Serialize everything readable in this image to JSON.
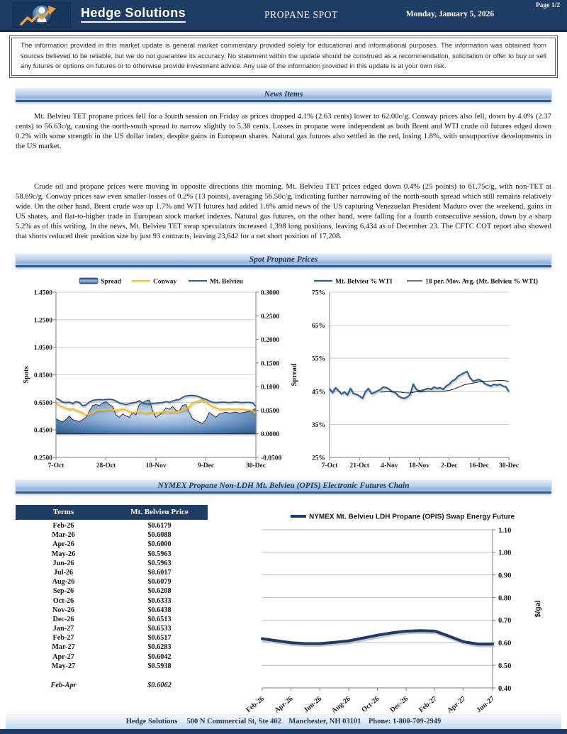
{
  "header": {
    "company": "Hedge Solutions",
    "report_title": "PROPANE SPOT",
    "date": "Monday, January 5, 2026",
    "page": "Page 1/2"
  },
  "disclaimer": "The information provided in this market update is general market commentary provided solely for educational and informational purposes.  The information was obtained from sources believed to be reliable, but we do not guarantee its accuracy.  No statement within the update should be construed as a recommendation, solicitation or offer to buy or sell any futures or options on futures or to otherwise provide investment advice.  Any use of the information provided in this update is at your own risk.",
  "sections": {
    "news": "News Items",
    "spot": "Spot Propane Prices",
    "futures": "NYMEX Propane Non-LDH Mt. Belvieu  (OPIS) Electronic Futures Chain"
  },
  "news": {
    "paragraph1": "Mt. Belvieu TET propane prices fell for a fourth session on Friday as prices dropped 4.1% (2.63 cents) lower to 62.00c/g. Conway prices also fell, down by 4.0% (2.37 cents) to 56.63c/g, causing the north-south spread to narrow slightly to 5.38 cents. Losses in propane were independent as both Brent and WTI crude oil futures edged down 0.2% with some strength in the US dollar index, despite gains in European shares. Natural gas futures also settled in the red, losing 1.8%, with unsupportive developments in the US market.",
    "paragraph2": "Crude oil and propane prices were moving in opposite directions this morning. Mt. Belvieu TET prices edged down 0.4% (25 points) to 61.75c/g, with non-TET at 58.69c/g. Conway prices saw even smaller losses of 0.2% (13 points), averaging 56.50c/g, indicating further narrowing of the north-south spread which still remains relatively wide. On the other hand, Brent crude was up 1.7% and WTI futures had added 1.6% amid news of the US capturing Venezuelan President Maduro over the weekend, gains in US shares, and flat-to-higher trade in European stock market indexes. Natural gas futures, on the other hand, were falling for a fourth consecutive session, down by a sharp 5.2% as of this writing. In the news, Mt. Belvieu TET swap speculators increased 1,398 long positions, leaving 6,434 as of December 23. The CFTC COT report also showed that shorts reduced their position size by just 93 contracts, leaving 23,642 for a net short position of 17,208."
  },
  "futures_table": {
    "headers": [
      "Terms",
      "Mt. Belvieu Price"
    ],
    "rows": [
      [
        "Feb-26",
        "$0.6179"
      ],
      [
        "Mar-26",
        "$0.6088"
      ],
      [
        "Apr-26",
        "$0.6000"
      ],
      [
        "May-26",
        "$0.5963"
      ],
      [
        "Jun-26",
        "$0.5963"
      ],
      [
        "Jul-26",
        "$0.6017"
      ],
      [
        "Aug-26",
        "$0.6079"
      ],
      [
        "Sep-26",
        "$0.6208"
      ],
      [
        "Oct-26",
        "$0.6333"
      ],
      [
        "Nov-26",
        "$0.6438"
      ],
      [
        "Dec-26",
        "$0.6513"
      ],
      [
        "Jan-27",
        "$0.6533"
      ],
      [
        "Feb-27",
        "$0.6517"
      ],
      [
        "Mar-27",
        "$0.6283"
      ],
      [
        "Apr-27",
        "$0.6042"
      ],
      [
        "May-27",
        "$0.5938"
      ]
    ],
    "summary_row": [
      "Feb-Apr",
      "$0.6062"
    ]
  },
  "footer": {
    "text": "Hedge Solutions     500 N Commercial St, Ste 402    Manchester, NH 03101    Phone: 1-800-709-2949"
  },
  "colors": {
    "navy": "#1f3c64",
    "bar_text": "#17375d",
    "conway_gold": "#ffc000",
    "belvieu_blue": "#2d5c8e",
    "grid_gray": "#bfbfbf",
    "axis_gray": "#7f7f7f"
  },
  "chart_data": [
    {
      "type": "area",
      "title": "Spot chart: Spread area with Conway and Mt. Belvieu lines",
      "legend": [
        "Spread",
        "Conway",
        "Mt. Belvieu"
      ],
      "ylabel_left": "Spots",
      "ylabel_right": "Spread",
      "ylim_left": [
        0.25,
        1.45
      ],
      "yticks_left": [
        "0.2500",
        "0.4500",
        "0.6500",
        "0.8500",
        "1.0500",
        "1.2500",
        "1.4500"
      ],
      "ylim_right": [
        -0.05,
        0.3
      ],
      "yticks_right": [
        "-0.0500",
        "0.0000",
        "0.0500",
        "0.1000",
        "0.1500",
        "0.2000",
        "0.2500",
        "0.3000"
      ],
      "xticks": [
        "7-Oct",
        "28-Oct",
        "18-Nov",
        "9-Dec",
        "30-Dec"
      ],
      "xtick_indices": [
        0,
        15,
        30,
        45,
        60
      ],
      "grid": true,
      "legend_position": "top",
      "series": [
        {
          "name": "Spread",
          "axis": "right",
          "values": [
            0.032,
            0.028,
            0.025,
            0.03,
            0.038,
            0.03,
            0.028,
            0.026,
            0.03,
            0.035,
            0.048,
            0.06,
            0.062,
            0.06,
            0.065,
            0.068,
            0.062,
            0.058,
            0.04,
            0.035,
            0.042,
            0.038,
            0.035,
            0.045,
            0.04,
            0.062,
            0.066,
            0.07,
            0.072,
            0.048,
            0.035,
            0.04,
            0.045,
            0.055,
            0.052,
            0.058,
            0.05,
            0.048,
            0.06,
            0.062,
            0.045,
            0.032,
            0.028,
            0.025,
            0.022,
            0.03,
            0.045,
            0.04,
            0.035,
            0.042,
            0.044,
            0.046,
            0.044,
            0.045,
            0.046,
            0.044,
            0.045,
            0.046,
            0.048,
            0.05,
            0.054
          ]
        },
        {
          "name": "Conway",
          "axis": "left",
          "values": [
            0.645,
            0.628,
            0.618,
            0.608,
            0.6,
            0.605,
            0.592,
            0.584,
            0.572,
            0.56,
            0.565,
            0.576,
            0.59,
            0.596,
            0.592,
            0.596,
            0.599,
            0.596,
            0.591,
            0.596,
            0.601,
            0.599,
            0.582,
            0.577,
            0.58,
            0.582,
            0.576,
            0.573,
            0.579,
            0.576,
            0.573,
            0.576,
            0.579,
            0.581,
            0.579,
            0.581,
            0.583,
            0.586,
            0.591,
            0.601,
            0.621,
            0.646,
            0.656,
            0.661,
            0.669,
            0.651,
            0.636,
            0.621,
            0.611,
            0.601,
            0.599,
            0.601,
            0.603,
            0.601,
            0.599,
            0.601,
            0.599,
            0.596,
            0.594,
            0.591,
            0.566
          ]
        },
        {
          "name": "Mt. Belvieu",
          "axis": "left",
          "values": [
            0.68,
            0.668,
            0.652,
            0.648,
            0.652,
            0.64,
            0.656,
            0.648,
            0.625,
            0.632,
            0.652,
            0.664,
            0.668,
            0.67,
            0.668,
            0.67,
            0.672,
            0.67,
            0.66,
            0.646,
            0.64,
            0.633,
            0.64,
            0.646,
            0.65,
            0.662,
            0.646,
            0.64,
            0.638,
            0.641,
            0.643,
            0.646,
            0.649,
            0.655,
            0.65,
            0.66,
            0.666,
            0.671,
            0.686,
            0.696,
            0.7,
            0.7,
            0.698,
            0.69,
            0.68,
            0.672,
            0.661,
            0.651,
            0.648,
            0.65,
            0.652,
            0.65,
            0.648,
            0.65,
            0.652,
            0.65,
            0.648,
            0.65,
            0.65,
            0.647,
            0.62
          ]
        }
      ]
    },
    {
      "type": "line",
      "title": "Mt. Belvieu % WTI with 18 period moving average",
      "legend": [
        "Mt. Belvieu % WTI",
        "18 per. Mov. Avg. (Mt. Belvieu % WTI)"
      ],
      "ylim": [
        25,
        75
      ],
      "yticks": [
        "25%",
        "35%",
        "45%",
        "55%",
        "65%",
        "75%"
      ],
      "xticks": [
        "7-Oct",
        "21-Oct",
        "4-Nov",
        "18-Nov",
        "2-Dec",
        "16-Dec",
        "30-Dec"
      ],
      "xtick_indices": [
        0,
        10,
        20,
        30,
        40,
        50,
        60
      ],
      "grid": true,
      "legend_position": "top",
      "moving_avg_window": 18,
      "values": [
        45.8,
        44.6,
        46.1,
        45.2,
        44.2,
        44.8,
        43.9,
        45.9,
        44.3,
        44.1,
        43.6,
        42.9,
        44.9,
        45.9,
        44.3,
        44.6,
        45.1,
        45.6,
        46.3,
        46.1,
        45.6,
        44.9,
        44.6,
        43.6,
        43.1,
        42.9,
        43.3,
        44.1,
        47.2,
        45.6,
        45.1,
        45.3,
        45.6,
        45.9,
        45.6,
        46.3,
        45.9,
        46.1,
        45.6,
        46.6,
        47.1,
        48.1,
        48.6,
        49.6,
        50.1,
        50.6,
        51.0,
        49.1,
        48.1,
        48.3,
        48.6,
        48.1,
        47.3,
        46.9,
        46.6,
        47.1,
        46.9,
        47.1,
        46.6,
        46.4,
        44.9
      ]
    },
    {
      "type": "line",
      "title": "NYMEX futures strip",
      "legend": [
        "NYMEX Mt. Belvieu LDH Propane (OPIS) Swap Energy Future"
      ],
      "ylabel": "$/gal",
      "ylim": [
        0.4,
        1.1
      ],
      "yticks": [
        "0.40",
        "0.50",
        "0.60",
        "0.70",
        "0.80",
        "0.90",
        "1.00",
        "1.10"
      ],
      "categories": [
        "Feb-26",
        "Mar-26",
        "Apr-26",
        "May-26",
        "Jun-26",
        "Jul-26",
        "Aug-26",
        "Sep-26",
        "Oct-26",
        "Nov-26",
        "Dec-26",
        "Jan-27",
        "Feb-27",
        "Mar-27",
        "Apr-27",
        "May-27",
        "Jun-27"
      ],
      "xticks": [
        "Feb-26",
        "Apr-26",
        "Jun-26",
        "Aug-26",
        "Oct-26",
        "Dec-26",
        "Feb-27",
        "Apr-27",
        "Jun-27"
      ],
      "xtick_indices": [
        0,
        2,
        4,
        6,
        8,
        10,
        12,
        14,
        16
      ],
      "grid": true,
      "legend_position": "top",
      "values": [
        0.6179,
        0.6088,
        0.6,
        0.5963,
        0.5963,
        0.6017,
        0.6079,
        0.6208,
        0.6333,
        0.6438,
        0.6513,
        0.6533,
        0.6517,
        0.6283,
        0.6042,
        0.5938,
        0.594
      ]
    }
  ]
}
